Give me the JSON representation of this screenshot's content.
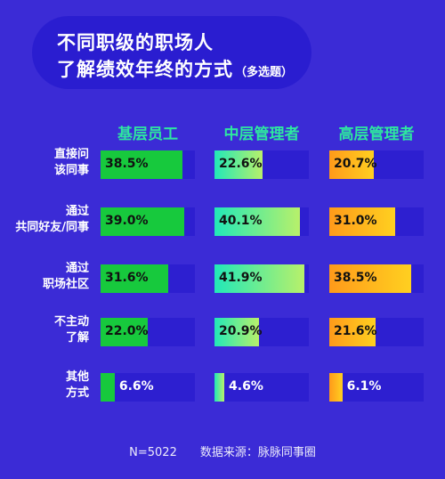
{
  "title": {
    "line1": "不同职级的职场人",
    "line2": "了解绩效年终的方式",
    "note": "（多选题）"
  },
  "footer": {
    "sample": "N=5022",
    "source": "数据来源：脉脉同事圈"
  },
  "chart_data": {
    "type": "bar",
    "orientation": "horizontal",
    "unit": "%",
    "series": [
      {
        "name": "基层员工",
        "values": [
          38.5,
          39.0,
          31.6,
          22.0,
          6.6
        ],
        "labels": [
          "38.5%",
          "39.0%",
          "31.6%",
          "22.0%",
          "6.6%"
        ],
        "color": "#17c93d"
      },
      {
        "name": "中层管理者",
        "values": [
          22.6,
          40.1,
          41.9,
          20.9,
          4.6
        ],
        "labels": [
          "22.6%",
          "40.1%",
          "41.9%",
          "20.9%",
          "4.6%"
        ],
        "color": "#22e8b8"
      },
      {
        "name": "高层管理者",
        "values": [
          20.7,
          31.0,
          38.5,
          21.6,
          6.1
        ],
        "labels": [
          "20.7%",
          "31.0%",
          "38.5%",
          "21.6%",
          "6.1%"
        ],
        "color": "#ff9a1a"
      }
    ],
    "categories": [
      [
        "直接问",
        "该同事"
      ],
      [
        "通过",
        "共同好友/同事"
      ],
      [
        "通过",
        "职场社区"
      ],
      [
        "不主动",
        "了解"
      ],
      [
        "其他",
        "方式"
      ]
    ],
    "xlim": [
      0,
      45
    ],
    "legend": "column headers"
  }
}
